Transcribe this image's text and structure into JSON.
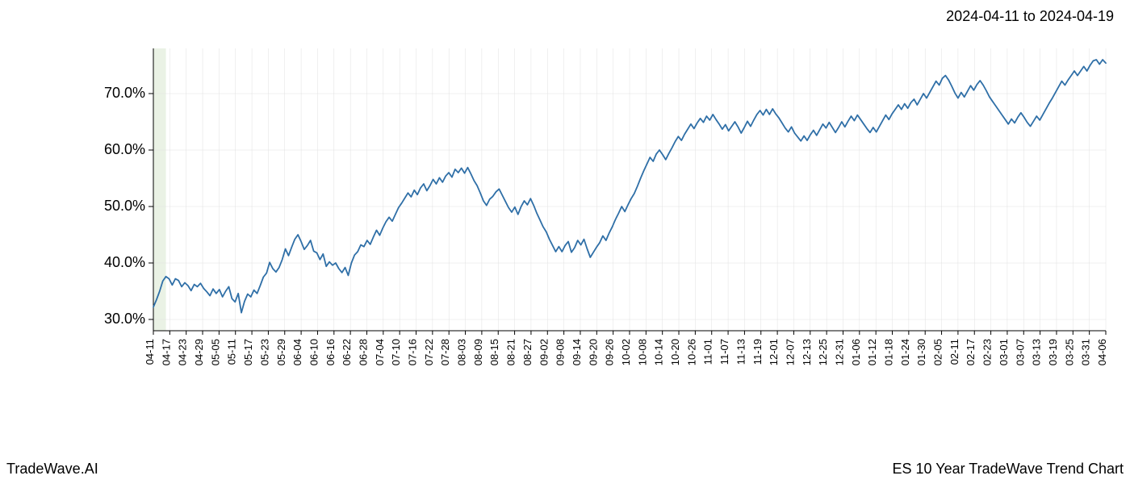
{
  "header": {
    "date_range": "2024-04-11 to 2024-04-19"
  },
  "footer": {
    "brand": "TradeWave.AI",
    "title": "ES 10 Year TradeWave Trend Chart"
  },
  "chart": {
    "type": "line",
    "background_color": "#ffffff",
    "line_color": "#2f6fa7",
    "line_width": 1.8,
    "grid_color": "#e0e0e0",
    "grid_width": 0.5,
    "axis_color": "#000000",
    "highlight_band": {
      "start_index": 0,
      "end_index": 4,
      "fill_color": "#d8e8d0",
      "opacity": 0.55
    },
    "ylim": [
      28,
      78
    ],
    "yticks": [
      30,
      40,
      50,
      60,
      70
    ],
    "ytick_labels": [
      "30.0%",
      "40.0%",
      "50.0%",
      "60.0%",
      "70.0%"
    ],
    "ytick_fontsize": 18,
    "xtick_labels": [
      "04-11",
      "04-17",
      "04-23",
      "04-29",
      "05-05",
      "05-11",
      "05-17",
      "05-23",
      "05-29",
      "06-04",
      "06-10",
      "06-16",
      "06-22",
      "06-28",
      "07-04",
      "07-10",
      "07-16",
      "07-22",
      "07-28",
      "08-03",
      "08-09",
      "08-15",
      "08-21",
      "08-27",
      "09-02",
      "09-08",
      "09-14",
      "09-20",
      "09-26",
      "10-02",
      "10-08",
      "10-14",
      "10-20",
      "10-26",
      "11-01",
      "11-07",
      "11-13",
      "11-19",
      "12-01",
      "12-07",
      "12-13",
      "12-25",
      "12-31",
      "01-06",
      "01-12",
      "01-18",
      "01-24",
      "01-30",
      "02-05",
      "02-11",
      "02-17",
      "02-23",
      "03-01",
      "03-07",
      "03-13",
      "03-19",
      "03-25",
      "03-31",
      "04-06"
    ],
    "xtick_fontsize": 13,
    "xtick_rotation": -90,
    "values": [
      32.2,
      33.5,
      35.0,
      36.8,
      37.6,
      37.2,
      36.1,
      37.2,
      36.9,
      35.8,
      36.5,
      36.0,
      35.1,
      36.2,
      35.8,
      36.4,
      35.5,
      34.9,
      34.2,
      35.4,
      34.6,
      35.3,
      34.0,
      35.0,
      35.8,
      33.7,
      33.1,
      34.6,
      31.2,
      33.2,
      34.5,
      34.0,
      35.2,
      34.6,
      36.0,
      37.5,
      38.2,
      40.1,
      39.0,
      38.4,
      39.2,
      40.6,
      42.5,
      41.3,
      42.8,
      44.2,
      45.0,
      43.8,
      42.4,
      43.1,
      44.0,
      42.1,
      41.8,
      40.6,
      41.6,
      39.4,
      40.2,
      39.6,
      40.0,
      39.0,
      38.3,
      39.2,
      37.8,
      40.0,
      41.4,
      42.0,
      43.2,
      42.9,
      44.0,
      43.3,
      44.6,
      45.8,
      44.9,
      46.2,
      47.3,
      48.1,
      47.4,
      48.6,
      49.8,
      50.6,
      51.5,
      52.4,
      51.7,
      52.9,
      52.1,
      53.3,
      54.0,
      52.8,
      53.7,
      54.8,
      54.0,
      55.1,
      54.3,
      55.4,
      56.0,
      55.2,
      56.6,
      56.0,
      56.8,
      55.9,
      56.9,
      55.8,
      54.6,
      53.7,
      52.4,
      51.0,
      50.2,
      51.3,
      51.8,
      52.6,
      53.1,
      52.0,
      50.9,
      49.8,
      49.0,
      49.9,
      48.6,
      50.0,
      51.0,
      50.3,
      51.4,
      50.2,
      48.8,
      47.6,
      46.4,
      45.5,
      44.2,
      43.1,
      42.0,
      42.9,
      42.0,
      43.1,
      43.8,
      41.9,
      42.7,
      44.0,
      43.2,
      44.2,
      42.5,
      41.0,
      41.9,
      42.8,
      43.6,
      44.8,
      44.0,
      45.3,
      46.4,
      47.7,
      48.8,
      50.0,
      49.1,
      50.3,
      51.4,
      52.3,
      53.6,
      55.0,
      56.3,
      57.5,
      58.7,
      58.0,
      59.3,
      60.0,
      59.2,
      58.3,
      59.4,
      60.4,
      61.5,
      62.4,
      61.7,
      62.8,
      63.7,
      64.6,
      63.8,
      64.8,
      65.6,
      64.9,
      66.0,
      65.3,
      66.3,
      65.4,
      64.6,
      63.7,
      64.5,
      63.4,
      64.2,
      65.0,
      64.1,
      63.0,
      64.0,
      65.1,
      64.2,
      65.3,
      66.3,
      67.0,
      66.2,
      67.2,
      66.3,
      67.3,
      66.4,
      65.7,
      64.8,
      63.9,
      63.2,
      64.1,
      63.0,
      62.3,
      61.6,
      62.5,
      61.7,
      62.7,
      63.5,
      62.6,
      63.6,
      64.6,
      63.9,
      64.9,
      64.0,
      63.1,
      64.0,
      65.0,
      64.1,
      65.1,
      66.0,
      65.2,
      66.2,
      65.4,
      64.6,
      63.8,
      63.1,
      64.0,
      63.2,
      64.2,
      65.2,
      66.2,
      65.4,
      66.4,
      67.2,
      68.0,
      67.2,
      68.2,
      67.4,
      68.4,
      69.0,
      68.0,
      69.0,
      70.0,
      69.2,
      70.2,
      71.2,
      72.2,
      71.5,
      72.7,
      73.2,
      72.4,
      71.3,
      70.1,
      69.2,
      70.2,
      69.4,
      70.4,
      71.4,
      70.6,
      71.6,
      72.3,
      71.5,
      70.5,
      69.4,
      68.6,
      67.8,
      67.0,
      66.2,
      65.4,
      64.6,
      65.5,
      64.8,
      65.8,
      66.6,
      65.8,
      64.9,
      64.2,
      65.1,
      66.0,
      65.3,
      66.3,
      67.3,
      68.3,
      69.2,
      70.2,
      71.2,
      72.2,
      71.5,
      72.4,
      73.2,
      74.0,
      73.2,
      74.0,
      74.8,
      74.0,
      75.0,
      75.8,
      76.0,
      75.2,
      76.0,
      75.4
    ]
  }
}
